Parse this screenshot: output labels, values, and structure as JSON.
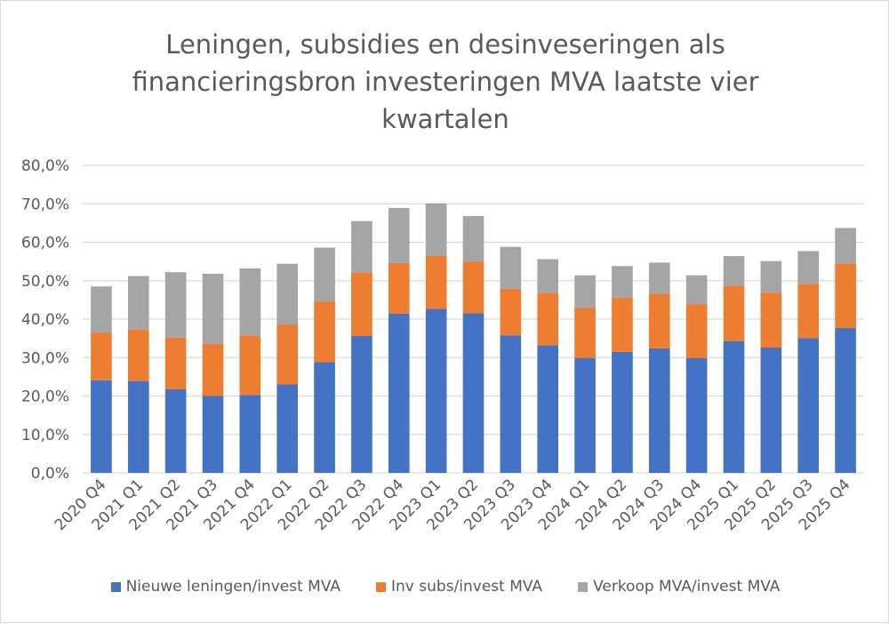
{
  "chart_data": {
    "type": "bar",
    "stacked": true,
    "title": "Leningen, subsidies en desinveseringen als financieringsbron investeringen MVA laatste vier kwartalen",
    "title_lines": [
      "Leningen, subsidies en desinveseringen als",
      "financieringsbron investeringen MVA laatste vier",
      "kwartalen"
    ],
    "xlabel": "",
    "ylabel": "",
    "ylim": [
      0,
      80
    ],
    "yticks": [
      0,
      10,
      20,
      30,
      40,
      50,
      60,
      70,
      80
    ],
    "ytick_labels": [
      "0,0%",
      "10,0%",
      "20,0%",
      "30,0%",
      "40,0%",
      "50,0%",
      "60,0%",
      "70,0%",
      "80,0%"
    ],
    "grid": true,
    "legend_position": "bottom",
    "categories": [
      "2020 Q4",
      "2021 Q1",
      "2021 Q2",
      "2021 Q3",
      "2021 Q4",
      "2022 Q1",
      "2022 Q2",
      "2022 Q3",
      "2022 Q4",
      "2023 Q1",
      "2023 Q2",
      "2023 Q3",
      "2023 Q4",
      "2024 Q1",
      "2024 Q2",
      "2024 Q3",
      "2024 Q4",
      "2025 Q1",
      "2025 Q2",
      "2025 Q3",
      "2025 Q4"
    ],
    "series": [
      {
        "name": "Nieuwe leningen/invest MVA",
        "color": "#4472c4",
        "values": [
          24.1,
          23.9,
          21.8,
          20.0,
          20.3,
          23.0,
          28.8,
          35.6,
          41.4,
          42.7,
          41.5,
          35.8,
          33.2,
          29.9,
          31.5,
          32.4,
          29.9,
          34.3,
          32.6,
          35.1,
          37.7
        ]
      },
      {
        "name": "Inv subs/invest MVA",
        "color": "#ed7d31",
        "values": [
          12.4,
          13.4,
          13.4,
          13.6,
          15.5,
          15.6,
          15.9,
          16.6,
          13.2,
          13.8,
          13.5,
          12.1,
          13.7,
          13.0,
          14.1,
          14.2,
          14.0,
          14.4,
          14.3,
          14.1,
          16.8
        ]
      },
      {
        "name": "Verkoop MVA/invest MVA",
        "color": "#a5a5a5",
        "values": [
          12.0,
          13.9,
          17.0,
          18.2,
          17.4,
          15.8,
          13.9,
          13.3,
          14.3,
          13.6,
          11.8,
          10.9,
          8.7,
          8.5,
          8.2,
          8.1,
          7.5,
          7.7,
          8.2,
          8.5,
          9.2
        ]
      }
    ]
  }
}
